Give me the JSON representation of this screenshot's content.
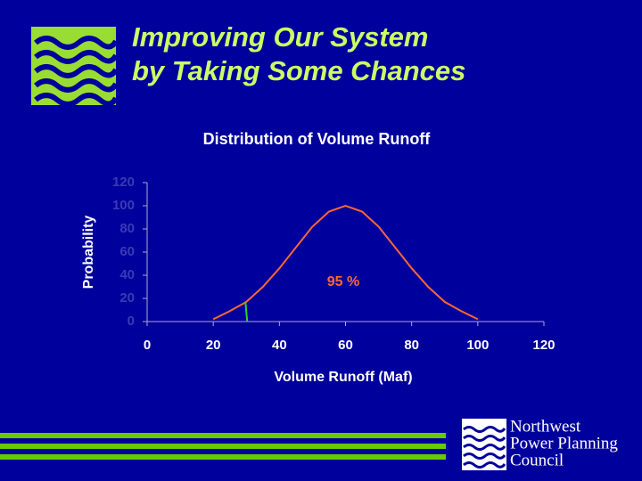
{
  "slide": {
    "title": [
      "Improving Our System",
      "by Taking Some Chances"
    ],
    "logo": [
      "Northwest",
      "Power  Planning",
      "Council"
    ]
  },
  "chart_data": {
    "type": "line",
    "title": "Distribution of Volume Runoff",
    "xlabel": "Volume Runoff (Maf)",
    "ylabel": "Probability",
    "x": [
      20,
      25,
      30,
      35,
      40,
      45,
      50,
      55,
      60,
      65,
      70,
      75,
      80,
      85,
      90,
      95,
      100
    ],
    "series": [
      {
        "color": "#ff6633",
        "values": [
          2,
          9,
          17,
          30,
          46,
          64,
          82,
          95,
          100,
          95,
          82,
          64,
          46,
          30,
          17,
          9,
          2
        ]
      }
    ],
    "marker_x": 30,
    "marker_color": "#33cc33",
    "annotation": "95 %",
    "xlim": [
      0,
      120
    ],
    "xticks": [
      0,
      20,
      40,
      60,
      80,
      100,
      120
    ],
    "ylim": [
      0,
      120
    ],
    "yticks": [
      0,
      20,
      40,
      60,
      80,
      100,
      120
    ]
  }
}
